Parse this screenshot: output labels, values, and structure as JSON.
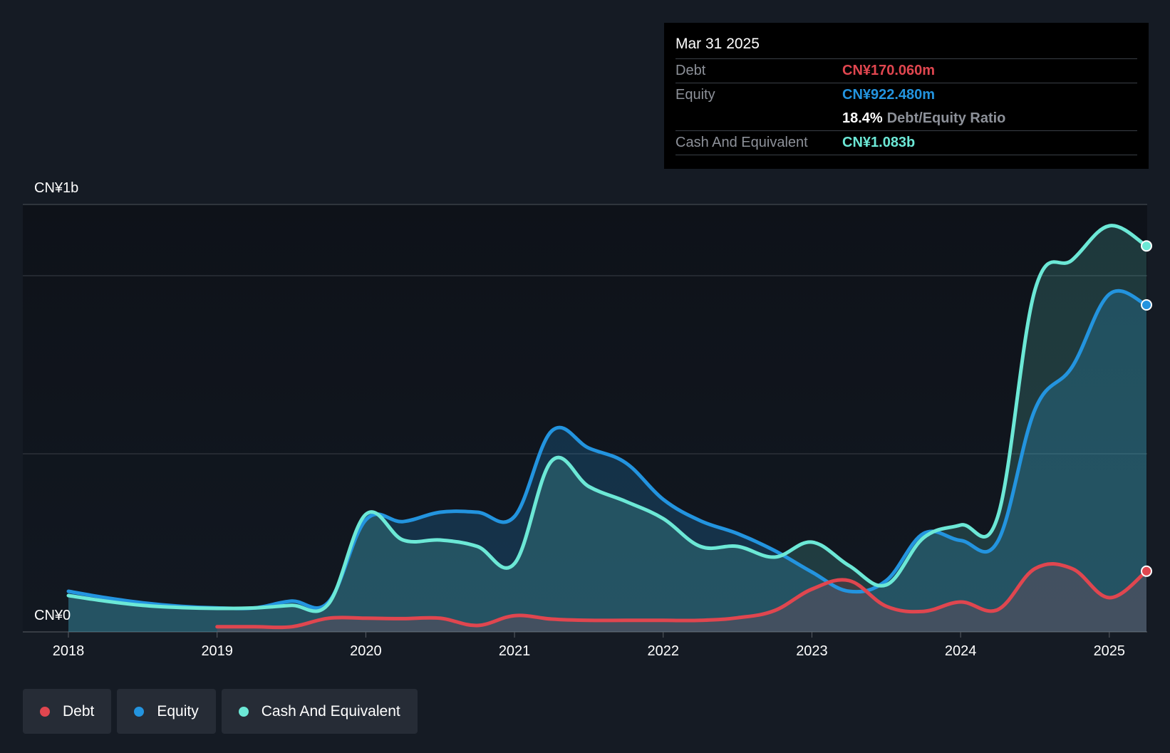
{
  "colors": {
    "debt": "#e0464f",
    "equity": "#2394df",
    "cash": "#6ce8d6",
    "grid": "#3a3f47",
    "background": "#151b24",
    "axis_text": "#ffffff"
  },
  "tooltip": {
    "date": "Mar 31 2025",
    "debt_label": "Debt",
    "debt_value": "CN¥170.060m",
    "equity_label": "Equity",
    "equity_value": "CN¥922.480m",
    "ratio_value": "18.4%",
    "ratio_label": "Debt/Equity Ratio",
    "cash_label": "Cash And Equivalent",
    "cash_value": "CN¥1.083b"
  },
  "legend": [
    {
      "label": "Debt",
      "color": "#e0464f"
    },
    {
      "label": "Equity",
      "color": "#2394df"
    },
    {
      "label": "Cash And Equivalent",
      "color": "#6ce8d6"
    }
  ],
  "chart_data": {
    "type": "area",
    "y_top_label": "CN¥1b",
    "y_zero_label": "CN¥0",
    "ylim": [
      0,
      1.2
    ],
    "y_gridlines": [
      0,
      0.4167,
      0.8333,
      1.0
    ],
    "xlim": [
      2018.0,
      2025.25
    ],
    "x_ticks": [
      2018,
      2019,
      2020,
      2021,
      2022,
      2023,
      2024,
      2025
    ],
    "x_tick_labels": [
      "2018",
      "2019",
      "2020",
      "2021",
      "2022",
      "2023",
      "2024",
      "2025"
    ],
    "series": [
      {
        "name": "Equity",
        "x": [
          2018.0,
          2018.25,
          2018.5,
          2018.75,
          2019.0,
          2019.25,
          2019.5,
          2019.75,
          2020.0,
          2020.25,
          2020.5,
          2020.75,
          2021.0,
          2021.25,
          2021.5,
          2021.75,
          2022.0,
          2022.25,
          2022.5,
          2022.75,
          2023.0,
          2023.25,
          2023.5,
          2023.75,
          2024.0,
          2024.25,
          2024.5,
          2024.75,
          2025.0,
          2025.25
        ],
        "values": [
          0.095,
          0.08,
          0.068,
          0.06,
          0.056,
          0.056,
          0.072,
          0.07,
          0.262,
          0.258,
          0.28,
          0.28,
          0.27,
          0.47,
          0.43,
          0.395,
          0.31,
          0.26,
          0.23,
          0.19,
          0.14,
          0.095,
          0.12,
          0.23,
          0.214,
          0.212,
          0.52,
          0.62,
          0.79,
          0.765
        ]
      },
      {
        "name": "Cash And Equivalent",
        "x": [
          2018.0,
          2018.25,
          2018.5,
          2018.75,
          2019.0,
          2019.25,
          2019.5,
          2019.75,
          2020.0,
          2020.25,
          2020.5,
          2020.75,
          2021.0,
          2021.25,
          2021.5,
          2021.75,
          2022.0,
          2022.25,
          2022.5,
          2022.75,
          2023.0,
          2023.25,
          2023.5,
          2023.75,
          2024.0,
          2024.25,
          2024.5,
          2024.75,
          2025.0,
          2025.25
        ],
        "values": [
          0.085,
          0.072,
          0.062,
          0.057,
          0.055,
          0.056,
          0.062,
          0.066,
          0.275,
          0.215,
          0.215,
          0.2,
          0.16,
          0.4,
          0.34,
          0.305,
          0.265,
          0.2,
          0.2,
          0.175,
          0.21,
          0.155,
          0.11,
          0.22,
          0.25,
          0.27,
          0.8,
          0.87,
          0.95,
          0.903
        ]
      },
      {
        "name": "Debt",
        "x": [
          2019.0,
          2019.25,
          2019.5,
          2019.75,
          2020.0,
          2020.25,
          2020.5,
          2020.75,
          2021.0,
          2021.25,
          2021.5,
          2021.75,
          2022.0,
          2022.25,
          2022.5,
          2022.75,
          2023.0,
          2023.25,
          2023.5,
          2023.75,
          2024.0,
          2024.25,
          2024.5,
          2024.75,
          2025.0,
          2025.25
        ],
        "values": [
          0.012,
          0.012,
          0.012,
          0.032,
          0.032,
          0.031,
          0.032,
          0.015,
          0.038,
          0.03,
          0.027,
          0.027,
          0.027,
          0.027,
          0.033,
          0.05,
          0.1,
          0.12,
          0.06,
          0.048,
          0.07,
          0.052,
          0.148,
          0.148,
          0.08,
          0.142
        ]
      }
    ]
  }
}
